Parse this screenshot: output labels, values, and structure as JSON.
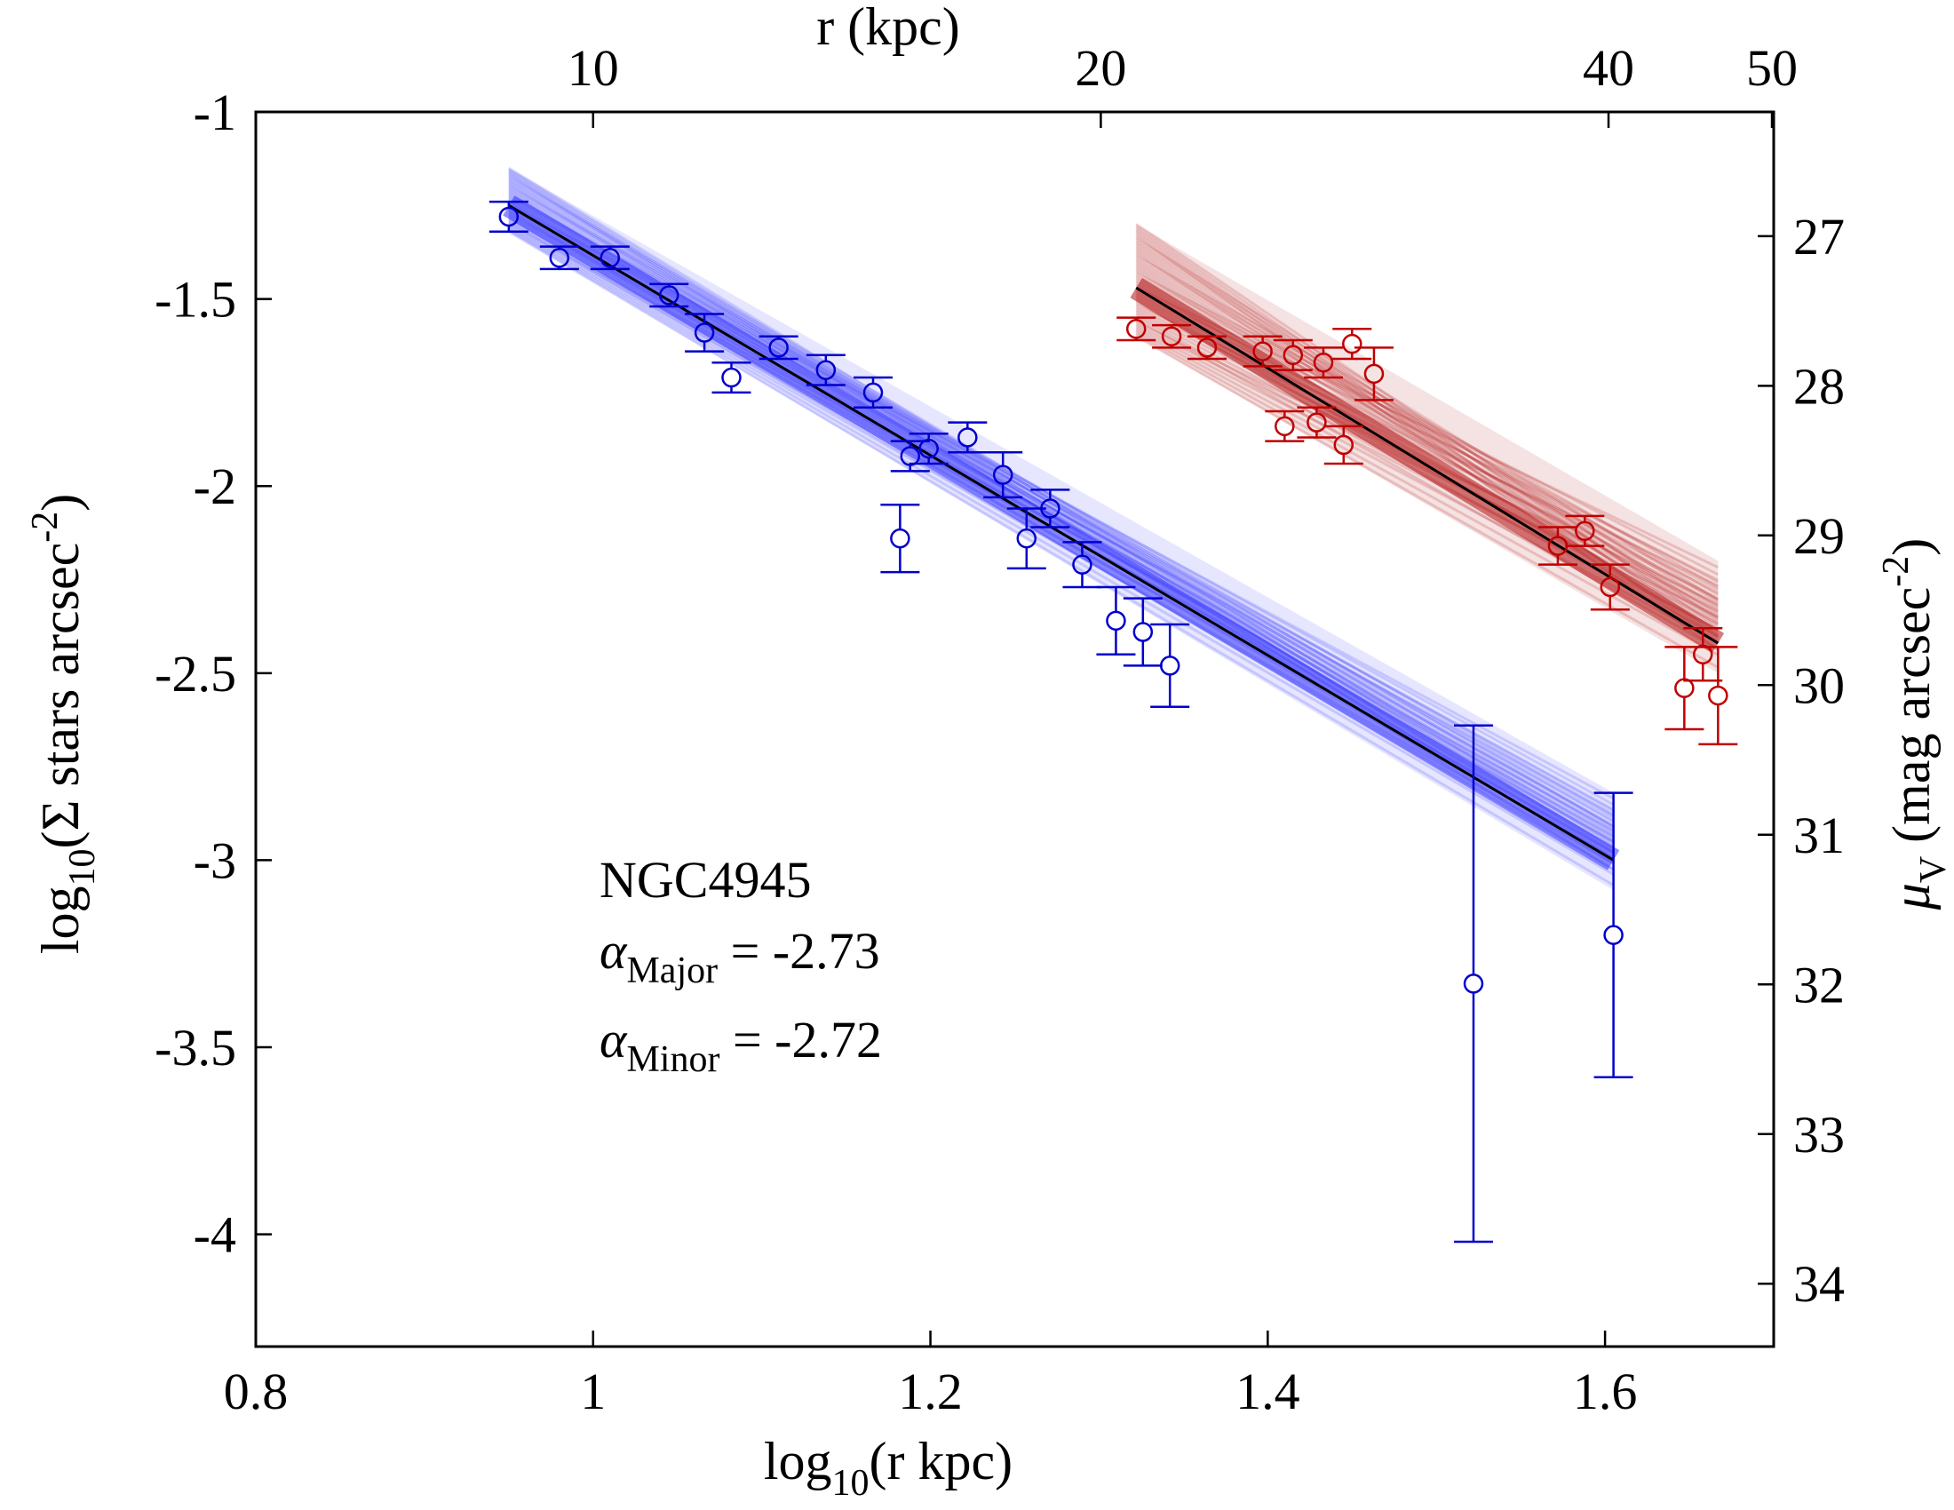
{
  "chart_data": {
    "type": "scatter",
    "xlabel": {
      "main": "log",
      "sub": "10",
      "rest": "(r kpc)"
    },
    "ylabel": {
      "main": "log",
      "sub": "10",
      "rest": "(Σ stars arcsec",
      "sup": "-2",
      "close": ")"
    },
    "x2label": "r (kpc)",
    "y2label": {
      "main": "μ",
      "sub": "V",
      "rest": " (mag arcsec",
      "sup": "-2",
      "close": ")"
    },
    "xlim": [
      0.8,
      1.7
    ],
    "ylim": [
      -4.3,
      -1.0
    ],
    "x_ticks": [
      0.8,
      1.0,
      1.2,
      1.4,
      1.6
    ],
    "x_tick_labels": [
      "0.8",
      "1",
      "1.2",
      "1.4",
      "1.6"
    ],
    "y_ticks": [
      -1,
      -1.5,
      -2,
      -2.5,
      -3,
      -3.5,
      -4
    ],
    "y_tick_labels": [
      "-1",
      "-1.5",
      "-2",
      "-2.5",
      "-3",
      "-3.5",
      "-4"
    ],
    "top_ticks_kpc": [
      10,
      20,
      40,
      50
    ],
    "top_tick_labels": [
      "10",
      "20",
      "40",
      "50"
    ],
    "right_ticks_mag": [
      27,
      28,
      29,
      30,
      31,
      32,
      33,
      34
    ],
    "right_tick_labels": [
      "27",
      "28",
      "29",
      "30",
      "31",
      "32",
      "33",
      "34"
    ],
    "mag_transform": {
      "mu_at_y_neg1": 26.17,
      "mu_per_unit_y": -2.5
    },
    "annotation": {
      "name": "NGC4945",
      "alpha_major": {
        "symbol": "α",
        "sub": "Major",
        "value": " = -2.73"
      },
      "alpha_minor": {
        "symbol": "α",
        "sub": "Minor",
        "value": " = -2.72"
      }
    },
    "colors": {
      "major": "#0000cc",
      "minor": "#c00000",
      "major_band": "#3333ff",
      "minor_band": "#b01010",
      "fit": "#000000"
    },
    "series": [
      {
        "name": "Major",
        "color": "#0000cc",
        "fit": {
          "x0": 0.95,
          "y0": -1.25,
          "x1": 1.605,
          "y1": -3.0
        },
        "band": {
          "x0": 0.95,
          "x1": 1.605,
          "y0_low": -1.32,
          "y0_high": -1.15,
          "y1_low": -3.08,
          "y1_high": -2.82
        },
        "points": [
          {
            "x": 0.95,
            "y": -1.28,
            "err": 0.04
          },
          {
            "x": 0.98,
            "y": -1.39,
            "err": 0.03
          },
          {
            "x": 1.01,
            "y": -1.39,
            "err": 0.03
          },
          {
            "x": 1.045,
            "y": -1.49,
            "err": 0.03
          },
          {
            "x": 1.066,
            "y": -1.59,
            "err": 0.05
          },
          {
            "x": 1.082,
            "y": -1.71,
            "err": 0.04
          },
          {
            "x": 1.11,
            "y": -1.63,
            "err": 0.03
          },
          {
            "x": 1.138,
            "y": -1.69,
            "err": 0.04
          },
          {
            "x": 1.166,
            "y": -1.75,
            "err": 0.04
          },
          {
            "x": 1.182,
            "y": -2.14,
            "err": 0.09
          },
          {
            "x": 1.188,
            "y": -1.92,
            "err": 0.04
          },
          {
            "x": 1.199,
            "y": -1.9,
            "err": 0.04
          },
          {
            "x": 1.222,
            "y": -1.87,
            "err": 0.04
          },
          {
            "x": 1.243,
            "y": -1.97,
            "err": 0.06
          },
          {
            "x": 1.257,
            "y": -2.14,
            "err": 0.08
          },
          {
            "x": 1.271,
            "y": -2.06,
            "err": 0.05
          },
          {
            "x": 1.29,
            "y": -2.21,
            "err": 0.06
          },
          {
            "x": 1.31,
            "y": -2.36,
            "err": 0.09
          },
          {
            "x": 1.326,
            "y": -2.39,
            "err": 0.09
          },
          {
            "x": 1.342,
            "y": -2.48,
            "err": 0.11
          },
          {
            "x": 1.522,
            "y": -3.33,
            "err": 0.69
          },
          {
            "x": 1.605,
            "y": -3.2,
            "err": 0.38
          }
        ]
      },
      {
        "name": "Minor",
        "color": "#c00000",
        "fit": {
          "x0": 1.322,
          "y0": -1.47,
          "x1": 1.667,
          "y1": -2.42
        },
        "band": {
          "x0": 1.322,
          "x1": 1.667,
          "y0_low": -1.6,
          "y0_high": -1.3,
          "y1_low": -2.5,
          "y1_high": -2.2
        },
        "points": [
          {
            "x": 1.322,
            "y": -1.58,
            "err": 0.03
          },
          {
            "x": 1.343,
            "y": -1.6,
            "err": 0.03
          },
          {
            "x": 1.364,
            "y": -1.63,
            "err": 0.03
          },
          {
            "x": 1.397,
            "y": -1.64,
            "err": 0.04
          },
          {
            "x": 1.41,
            "y": -1.84,
            "err": 0.04
          },
          {
            "x": 1.415,
            "y": -1.65,
            "err": 0.04
          },
          {
            "x": 1.429,
            "y": -1.83,
            "err": 0.04
          },
          {
            "x": 1.433,
            "y": -1.67,
            "err": 0.04
          },
          {
            "x": 1.445,
            "y": -1.89,
            "err": 0.05
          },
          {
            "x": 1.45,
            "y": -1.62,
            "err": 0.04
          },
          {
            "x": 1.463,
            "y": -1.7,
            "err": 0.07
          },
          {
            "x": 1.572,
            "y": -2.16,
            "err": 0.05
          },
          {
            "x": 1.588,
            "y": -2.12,
            "err": 0.04
          },
          {
            "x": 1.603,
            "y": -2.27,
            "err": 0.06
          },
          {
            "x": 1.647,
            "y": -2.54,
            "err": 0.11
          },
          {
            "x": 1.658,
            "y": -2.45,
            "err": 0.07
          },
          {
            "x": 1.667,
            "y": -2.56,
            "err": 0.13
          }
        ]
      }
    ]
  }
}
